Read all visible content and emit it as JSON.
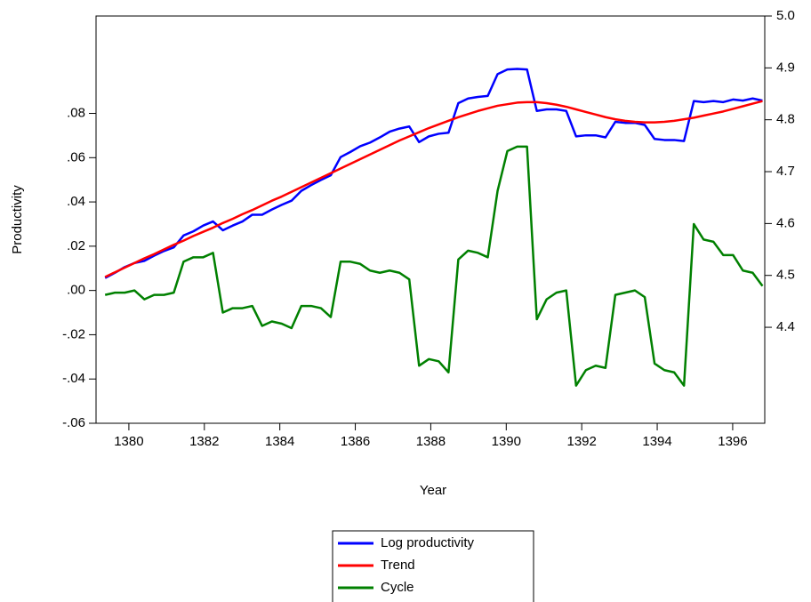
{
  "chart_data": {
    "type": "line",
    "x_label": "Year",
    "y_label": "Productivity",
    "x": [
      1379.37,
      1379.63,
      1379.89,
      1380.15,
      1380.41,
      1380.67,
      1380.93,
      1381.19,
      1381.45,
      1381.71,
      1381.97,
      1382.23,
      1382.49,
      1382.75,
      1383.01,
      1383.27,
      1383.53,
      1383.79,
      1384.05,
      1384.31,
      1384.57,
      1384.83,
      1385.09,
      1385.35,
      1385.61,
      1385.87,
      1386.13,
      1386.39,
      1386.65,
      1386.91,
      1387.17,
      1387.43,
      1387.69,
      1387.95,
      1388.21,
      1388.47,
      1388.73,
      1388.99,
      1389.25,
      1389.51,
      1389.77,
      1390.03,
      1390.29,
      1390.55,
      1390.81,
      1391.07,
      1391.33,
      1391.59,
      1391.85,
      1392.11,
      1392.37,
      1392.63,
      1392.89,
      1393.15,
      1393.41,
      1393.67,
      1393.93,
      1394.19,
      1394.45,
      1394.71,
      1394.97,
      1395.23,
      1395.49,
      1395.75,
      1396.01,
      1396.27,
      1396.53,
      1396.79
    ],
    "xlim": [
      1379.13,
      1396.85
    ],
    "xticks": [
      1380,
      1382,
      1384,
      1386,
      1388,
      1390,
      1392,
      1394,
      1396
    ],
    "ylim": [
      -0.06,
      0.124
    ],
    "yticks": [
      {
        "value": -0.06,
        "label": "-.06"
      },
      {
        "value": -0.04,
        "label": "-.04"
      },
      {
        "value": -0.02,
        "label": "-.02"
      },
      {
        "value": 0,
        "label": ".00"
      },
      {
        "value": 0.02,
        "label": ".02"
      },
      {
        "value": 0.04,
        "label": ".04"
      },
      {
        "value": 0.06,
        "label": ".06"
      },
      {
        "value": 0.08,
        "label": ".08"
      }
    ],
    "y2lim": [
      4.215,
      5.0
    ],
    "y2ticks": [
      4.4,
      4.5,
      4.6,
      4.7,
      4.8,
      4.9,
      {
        "value": 5.0,
        "label": "5.0"
      }
    ],
    "series": [
      {
        "name": "Log productivity",
        "color": "#0000ff",
        "axis": "y2",
        "values": [
          4.495,
          4.505,
          4.516,
          4.524,
          4.528,
          4.538,
          4.547,
          4.554,
          4.577,
          4.585,
          4.596,
          4.604,
          4.587,
          4.596,
          4.604,
          4.617,
          4.617,
          4.627,
          4.636,
          4.644,
          4.663,
          4.674,
          4.684,
          4.693,
          4.728,
          4.738,
          4.749,
          4.756,
          4.766,
          4.777,
          4.783,
          4.787,
          4.757,
          4.768,
          4.773,
          4.775,
          4.832,
          4.841,
          4.844,
          4.846,
          4.888,
          4.897,
          4.898,
          4.897,
          4.817,
          4.82,
          4.82,
          4.817,
          4.768,
          4.77,
          4.77,
          4.766,
          4.796,
          4.794,
          4.794,
          4.79,
          4.763,
          4.761,
          4.761,
          4.759,
          4.836,
          4.834,
          4.836,
          4.834,
          4.839,
          4.837,
          4.841,
          4.837
        ]
      },
      {
        "name": "Trend",
        "color": "#ff0000",
        "axis": "y2",
        "values": [
          4.497,
          4.506,
          4.515,
          4.524,
          4.533,
          4.541,
          4.55,
          4.559,
          4.567,
          4.576,
          4.584,
          4.592,
          4.601,
          4.609,
          4.618,
          4.626,
          4.635,
          4.644,
          4.652,
          4.661,
          4.67,
          4.679,
          4.688,
          4.697,
          4.706,
          4.715,
          4.724,
          4.733,
          4.742,
          4.751,
          4.76,
          4.768,
          4.776,
          4.784,
          4.791,
          4.798,
          4.805,
          4.811,
          4.817,
          4.822,
          4.827,
          4.83,
          4.833,
          4.834,
          4.834,
          4.832,
          4.829,
          4.825,
          4.82,
          4.815,
          4.81,
          4.805,
          4.801,
          4.798,
          4.796,
          4.795,
          4.795,
          4.796,
          4.798,
          4.801,
          4.804,
          4.808,
          4.812,
          4.816,
          4.821,
          4.826,
          4.831,
          4.836
        ]
      },
      {
        "name": "Cycle",
        "color": "#008000",
        "values": [
          -0.002,
          -0.001,
          -0.001,
          0,
          -0.004,
          -0.002,
          -0.002,
          -0.001,
          0.013,
          0.015,
          0.015,
          0.017,
          -0.01,
          -0.008,
          -0.008,
          -0.007,
          -0.016,
          -0.014,
          -0.015,
          -0.017,
          -0.007,
          -0.007,
          -0.008,
          -0.012,
          0.013,
          0.013,
          0.012,
          0.009,
          0.008,
          0.009,
          0.008,
          0.005,
          -0.034,
          -0.031,
          -0.032,
          -0.037,
          0.014,
          0.018,
          0.017,
          0.015,
          0.045,
          0.063,
          0.065,
          0.065,
          -0.013,
          -0.004,
          -0.001,
          0,
          -0.043,
          -0.036,
          -0.034,
          -0.035,
          -0.002,
          -0.001,
          0,
          -0.003,
          -0.033,
          -0.036,
          -0.037,
          -0.043,
          0.03,
          0.023,
          0.022,
          0.016,
          0.016,
          0.009,
          0.008,
          0.002
        ]
      }
    ],
    "legend": "bottom"
  }
}
